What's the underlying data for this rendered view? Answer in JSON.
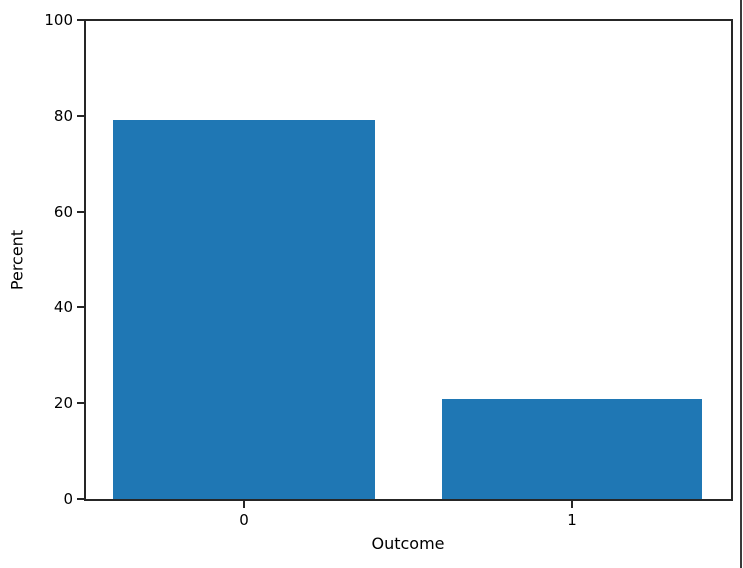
{
  "chart_data": {
    "type": "bar",
    "title": "",
    "xlabel": "Outcome",
    "ylabel": "Percent",
    "categories": [
      "0",
      "1"
    ],
    "values": [
      79.3,
      20.9
    ],
    "bar_color": "#1f77b4",
    "ylim": [
      0,
      100
    ],
    "ytick_labels_top_to_bottom": [
      "100",
      "80",
      "60",
      "40",
      "20",
      "0"
    ],
    "grid": false,
    "legend": "none",
    "spine_color": "#262626"
  },
  "window": {
    "right_border_color": "#3a3a3a"
  }
}
